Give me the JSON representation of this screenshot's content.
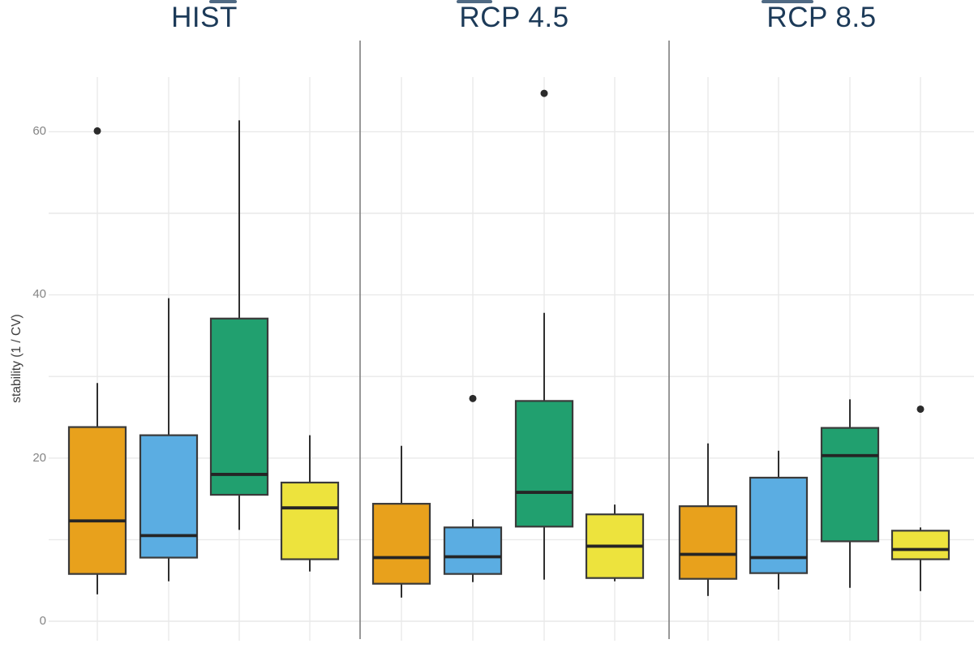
{
  "chart_data": {
    "type": "boxplot",
    "title": "",
    "xlabel": "",
    "ylabel": "stability (1 / CV)",
    "y_ticks": [
      0,
      20,
      40,
      60
    ],
    "y_gridline_values": [
      0,
      10,
      20,
      30,
      40,
      50,
      60
    ],
    "ylim": [
      0,
      66.5
    ],
    "grid": true,
    "legend": "none",
    "series_colors": {
      "orange": "#E8A11C",
      "blue": "#5BADE2",
      "green": "#21A06F",
      "yellow": "#EDE33D"
    },
    "panels": [
      {
        "title": "HIST",
        "boxes": [
          {
            "series": "orange",
            "lo": 3.3,
            "q1": 5.8,
            "med": 12.3,
            "q3": 23.8,
            "hi": 29.2,
            "outliers": [
              60.1
            ]
          },
          {
            "series": "blue",
            "lo": 4.9,
            "q1": 7.8,
            "med": 10.5,
            "q3": 22.8,
            "hi": 39.6,
            "outliers": []
          },
          {
            "series": "green",
            "lo": 11.2,
            "q1": 15.5,
            "med": 18.0,
            "q3": 37.1,
            "hi": 61.4,
            "outliers": []
          },
          {
            "series": "yellow",
            "lo": 6.1,
            "q1": 7.6,
            "med": 13.9,
            "q3": 17.0,
            "hi": 22.8,
            "outliers": []
          }
        ]
      },
      {
        "title": "RCP 4.5",
        "boxes": [
          {
            "series": "orange",
            "lo": 2.9,
            "q1": 4.6,
            "med": 7.8,
            "q3": 14.4,
            "hi": 21.5,
            "outliers": []
          },
          {
            "series": "blue",
            "lo": 4.8,
            "q1": 5.8,
            "med": 7.9,
            "q3": 11.5,
            "hi": 12.5,
            "outliers": [
              27.3
            ]
          },
          {
            "series": "green",
            "lo": 5.1,
            "q1": 11.6,
            "med": 15.8,
            "q3": 27.0,
            "hi": 37.8,
            "outliers": [
              64.7
            ]
          },
          {
            "series": "yellow",
            "lo": 4.9,
            "q1": 5.3,
            "med": 9.2,
            "q3": 13.1,
            "hi": 14.3,
            "outliers": []
          }
        ]
      },
      {
        "title": "RCP 8.5",
        "boxes": [
          {
            "series": "orange",
            "lo": 3.1,
            "q1": 5.2,
            "med": 8.2,
            "q3": 14.1,
            "hi": 21.8,
            "outliers": []
          },
          {
            "series": "blue",
            "lo": 3.9,
            "q1": 5.9,
            "med": 7.8,
            "q3": 17.6,
            "hi": 20.9,
            "outliers": []
          },
          {
            "series": "green",
            "lo": 4.1,
            "q1": 9.8,
            "med": 20.3,
            "q3": 23.7,
            "hi": 27.2,
            "outliers": []
          },
          {
            "series": "yellow",
            "lo": 3.7,
            "q1": 7.6,
            "med": 8.8,
            "q3": 11.1,
            "hi": 11.5,
            "outliers": [
              26.0
            ]
          }
        ]
      }
    ]
  },
  "colors": {
    "background": "#ffffff",
    "panel_title": "#1C3A58",
    "tick_text": "#848484",
    "axis_title": "#3C3C3C",
    "gridline": "#E9E9E9",
    "separator": "#7F7F7F",
    "box_border": "#3A3A3A",
    "whisker": "#2F2F2F",
    "median": "#252525",
    "outlier": "#2B2B2B",
    "artifact": "#31506E"
  }
}
